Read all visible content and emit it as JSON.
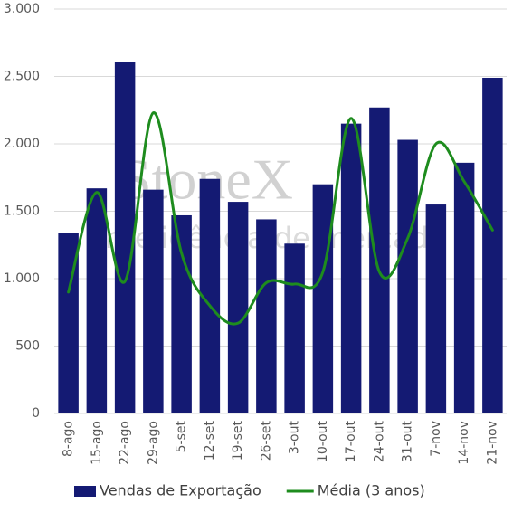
{
  "chart_data": {
    "type": "bar",
    "categories": [
      "8-ago",
      "15-ago",
      "22-ago",
      "29-ago",
      "5-set",
      "12-set",
      "19-set",
      "26-set",
      "3-out",
      "10-out",
      "17-out",
      "24-out",
      "31-out",
      "7-nov",
      "14-nov",
      "21-nov"
    ],
    "series": [
      {
        "name": "Vendas de Exportação",
        "color": "#141a73",
        "type": "bar",
        "values": [
          1340,
          1670,
          2610,
          1660,
          1470,
          1740,
          1570,
          1440,
          1260,
          1700,
          2150,
          2270,
          2030,
          1550,
          1860,
          2490
        ]
      },
      {
        "name": "Média (3 anos)",
        "color": "#1e8c1e",
        "type": "line",
        "values": [
          900,
          1640,
          980,
          2230,
          1190,
          800,
          670,
          970,
          960,
          1050,
          2190,
          1050,
          1300,
          2000,
          1720,
          1360
        ]
      }
    ],
    "ylim": [
      0,
      3000
    ],
    "yticks": [
      0,
      500,
      {
        "value": 1000,
        "label": "1.000"
      },
      {
        "value": 1500,
        "label": "1.500"
      },
      {
        "value": 2000,
        "label": "2.000"
      },
      {
        "value": 2500,
        "label": "2.500"
      },
      {
        "value": 3000,
        "label": "3.000"
      }
    ],
    "grid": true,
    "legend": "bottom",
    "watermark": {
      "brand": "StoneX",
      "tagline": "Inteligência de mercado"
    }
  }
}
